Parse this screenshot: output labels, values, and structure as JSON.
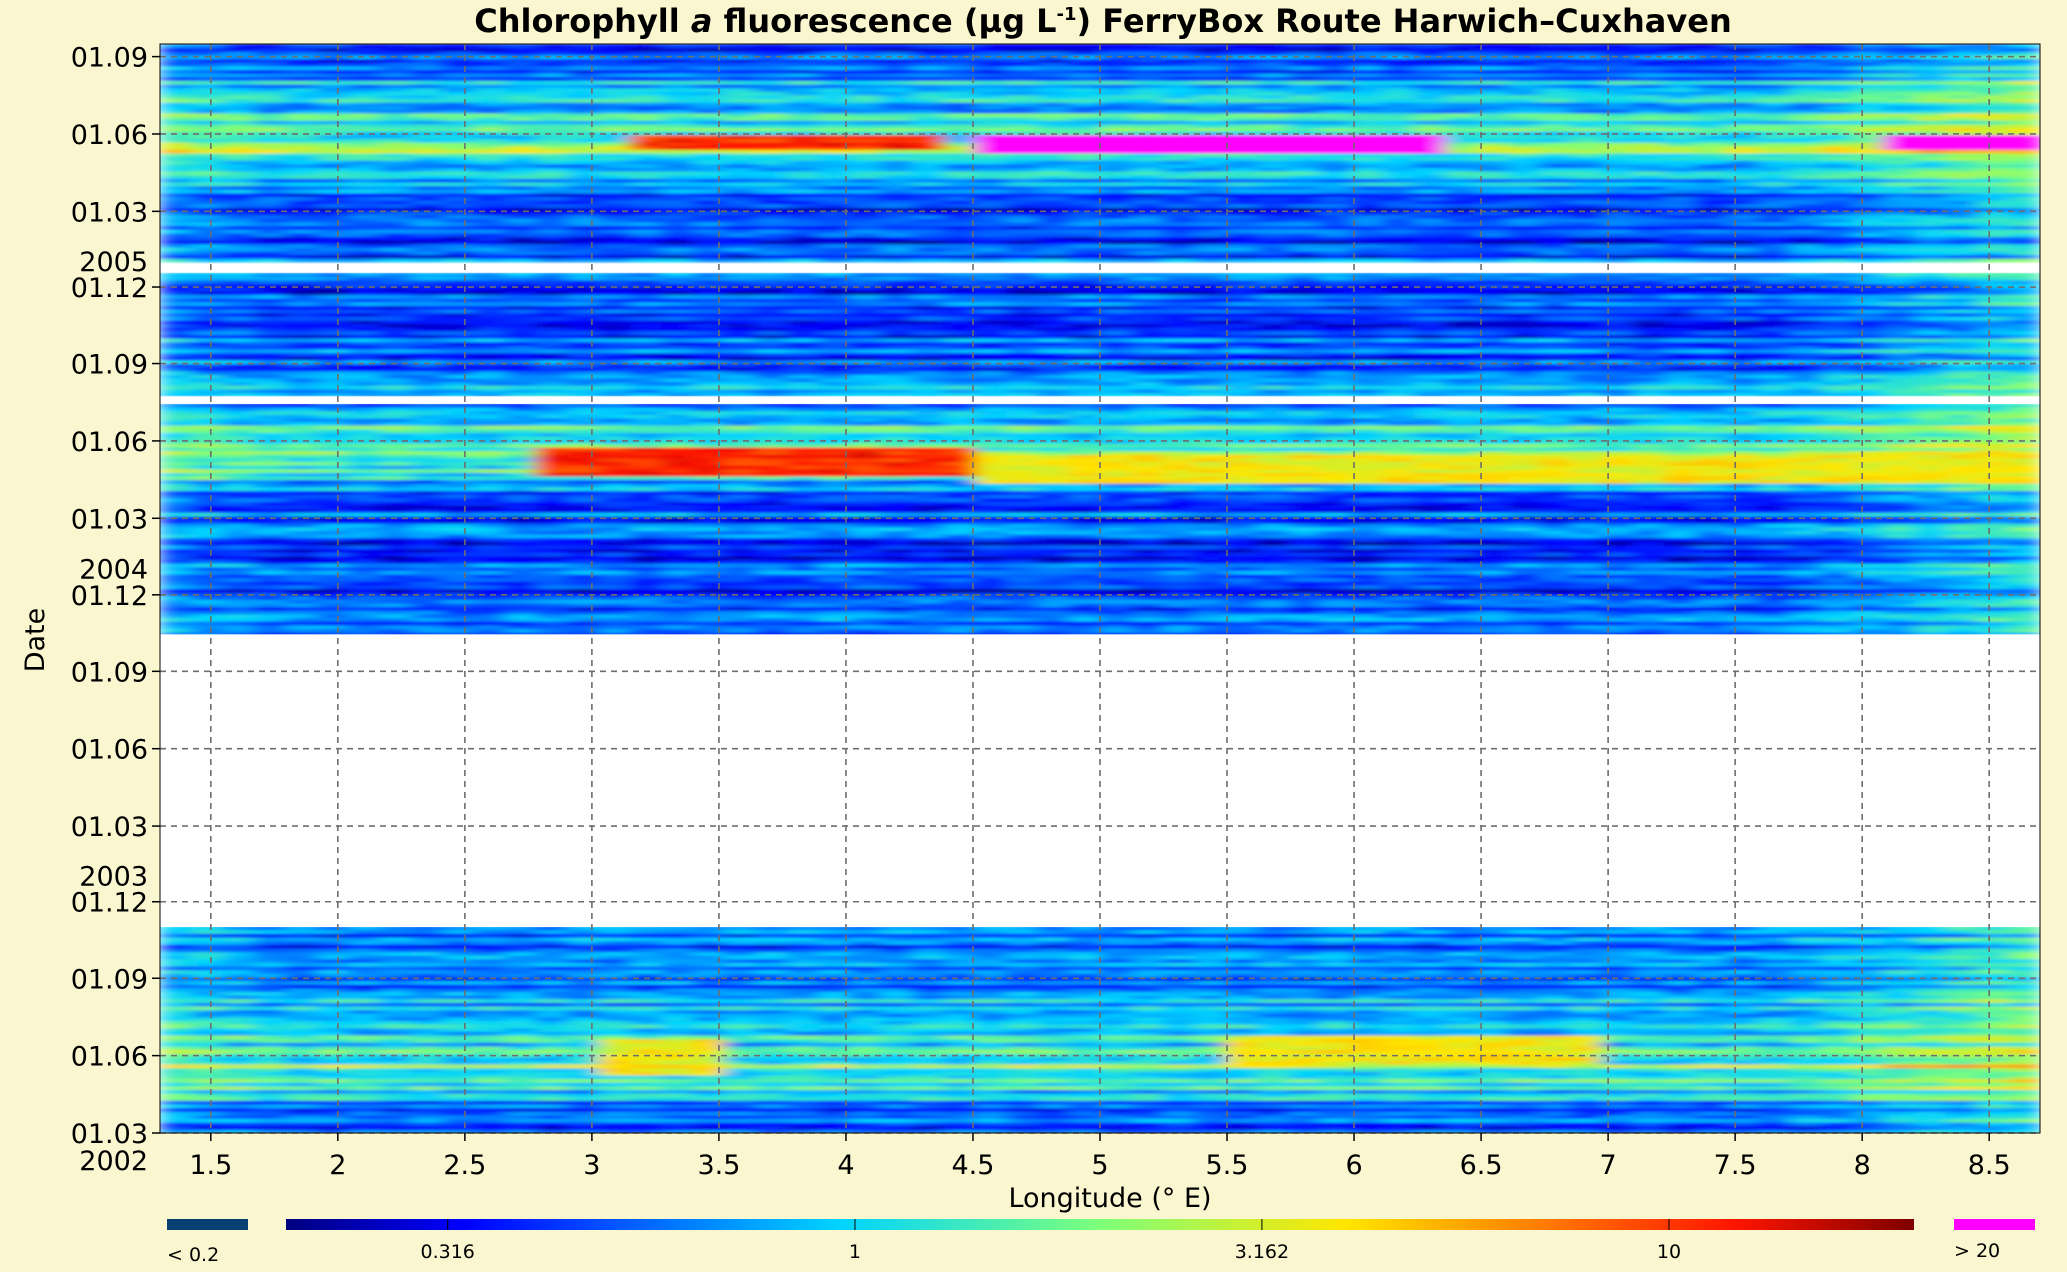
{
  "chart_data": {
    "type": "heatmap",
    "title_parts": [
      "Chlorophyll ",
      "a",
      " fluorescence (µg L",
      "-1",
      ") FerryBox Route Harwich–Cuxhaven"
    ],
    "xlabel": "Longitude (° E)",
    "ylabel": "Date",
    "xlim": [
      1.3,
      8.7
    ],
    "x_ticks": [
      1.5,
      2,
      2.5,
      3,
      3.5,
      4,
      4.5,
      5,
      5.5,
      6,
      6.5,
      7,
      7.5,
      8,
      8.5
    ],
    "x_tick_labels": [
      "1.5",
      "2",
      "2.5",
      "3",
      "3.5",
      "4",
      "4.5",
      "5",
      "5.5",
      "6",
      "6.5",
      "7",
      "7.5",
      "8",
      "8.5"
    ],
    "ylim": [
      "2002-03-01",
      "2005-09-16"
    ],
    "y_ticks": [
      {
        "date": "2002-03-01",
        "label": "01.03",
        "year_label": "2002"
      },
      {
        "date": "2002-06-01",
        "label": "01.06"
      },
      {
        "date": "2002-09-01",
        "label": "01.09"
      },
      {
        "date": "2002-12-01",
        "label": "01.12"
      },
      {
        "date": "2003-01-01",
        "label": "",
        "year_label": "2003"
      },
      {
        "date": "2003-03-01",
        "label": "01.03"
      },
      {
        "date": "2003-06-01",
        "label": "01.06"
      },
      {
        "date": "2003-09-01",
        "label": "01.09"
      },
      {
        "date": "2003-12-01",
        "label": "01.12"
      },
      {
        "date": "2004-01-01",
        "label": "",
        "year_label": "2004"
      },
      {
        "date": "2004-03-01",
        "label": "01.03"
      },
      {
        "date": "2004-06-01",
        "label": "01.06"
      },
      {
        "date": "2004-09-01",
        "label": "01.09"
      },
      {
        "date": "2004-12-01",
        "label": "01.12"
      },
      {
        "date": "2005-01-01",
        "label": "",
        "year_label": "2005"
      },
      {
        "date": "2005-03-01",
        "label": "01.03"
      },
      {
        "date": "2005-06-01",
        "label": "01.06"
      },
      {
        "date": "2005-09-01",
        "label": "01.09"
      }
    ],
    "grid": true,
    "color_scale": "log",
    "colorbar": {
      "under_label": "< 0.2",
      "over_label": "> 20",
      "tick_values": [
        0.316,
        1,
        3.162,
        10
      ],
      "tick_labels": [
        "0.316",
        "1",
        "3.162",
        "10"
      ],
      "range": [
        0.2,
        20
      ],
      "under_color": "#0a3f73",
      "over_color": "#ff00ff",
      "colormap": "jet"
    },
    "data_gaps": [
      {
        "from": "2002-11-01",
        "to": "2003-10-15"
      },
      {
        "from": "2004-07-15",
        "to": "2004-07-24"
      },
      {
        "from": "2004-12-18",
        "to": "2004-12-29"
      }
    ],
    "blooms": [
      {
        "date_from": "2005-05-10",
        "date_to": "2005-06-02",
        "lon_from": 4.5,
        "lon_to": 6.4,
        "level": "> 20"
      },
      {
        "date_from": "2005-05-15",
        "date_to": "2005-06-01",
        "lon_from": 8.1,
        "lon_to": 8.7,
        "level": "> 20"
      },
      {
        "date_from": "2005-05-12",
        "date_to": "2005-06-02",
        "lon_from": 3.1,
        "lon_to": 4.4,
        "level": "10"
      },
      {
        "date_from": "2004-04-20",
        "date_to": "2004-05-25",
        "lon_from": 2.8,
        "lon_to": 4.5,
        "level": "10"
      },
      {
        "date_from": "2004-04-10",
        "date_to": "2004-05-15",
        "lon_from": 4.5,
        "lon_to": 8.7,
        "level": "3.162"
      },
      {
        "date_from": "2002-05-10",
        "date_to": "2002-06-20",
        "lon_from": 3.0,
        "lon_to": 3.5,
        "level": "3.162"
      },
      {
        "date_from": "2002-05-20",
        "date_to": "2002-06-25",
        "lon_from": 5.5,
        "lon_to": 7.0,
        "level": "3.162"
      }
    ]
  }
}
